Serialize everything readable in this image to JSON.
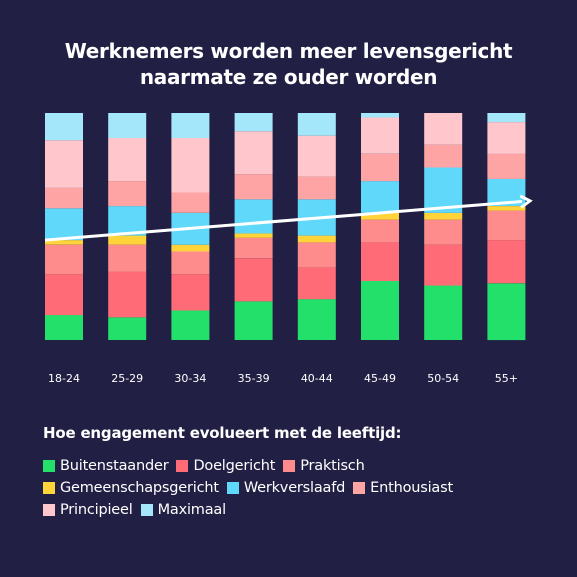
{
  "title": {
    "line1": "Werknemers worden meer levensgericht",
    "line2": "naarmate ze ouder worden"
  },
  "legend_title": "Hoe engagement evolueert met de leeftijd:",
  "colors": {
    "background": "#221f44",
    "trend_line": "#ffffff"
  },
  "chart_data": {
    "type": "bar",
    "stacked": true,
    "normalized_total": 100,
    "categories": [
      "18-24",
      "25-29",
      "30-34",
      "35-39",
      "40-44",
      "45-49",
      "50-54",
      "55+"
    ],
    "series": [
      {
        "name": "Buitenstaander",
        "color": "#22e06a",
        "values": [
          11,
          10,
          13,
          17,
          18,
          26,
          24,
          25
        ]
      },
      {
        "name": "Doelgericht",
        "color": "#ff6b76",
        "values": [
          18,
          20,
          16,
          19,
          14,
          17,
          18,
          19
        ]
      },
      {
        "name": "Praktisch",
        "color": "#ff8c8c",
        "values": [
          13,
          12,
          10,
          9,
          11,
          10,
          11,
          13
        ]
      },
      {
        "name": "Gemeenschapsgericht",
        "color": "#ffd43b",
        "values": [
          2,
          4,
          3,
          2,
          3,
          3,
          3,
          2
        ]
      },
      {
        "name": "Werkverslaafd",
        "color": "#5fd8fa",
        "values": [
          14,
          13,
          14,
          15,
          16,
          14,
          20,
          12
        ]
      },
      {
        "name": "Enthousiast",
        "color": "#ffa4a4",
        "values": [
          9,
          11,
          9,
          11,
          10,
          12,
          10,
          11
        ]
      },
      {
        "name": "Principieel",
        "color": "#ffc7cc",
        "values": [
          21,
          19,
          24,
          19,
          18,
          16,
          14,
          14
        ]
      },
      {
        "name": "Maximaal",
        "color": "#a4e6fa",
        "values": [
          12,
          11,
          11,
          8,
          10,
          2,
          0,
          4
        ]
      }
    ],
    "trend_line": {
      "start": 44,
      "end": 61,
      "arrow": true
    },
    "legend_position": "bottom-left",
    "grid": false,
    "xlabel": "",
    "ylabel": ""
  }
}
